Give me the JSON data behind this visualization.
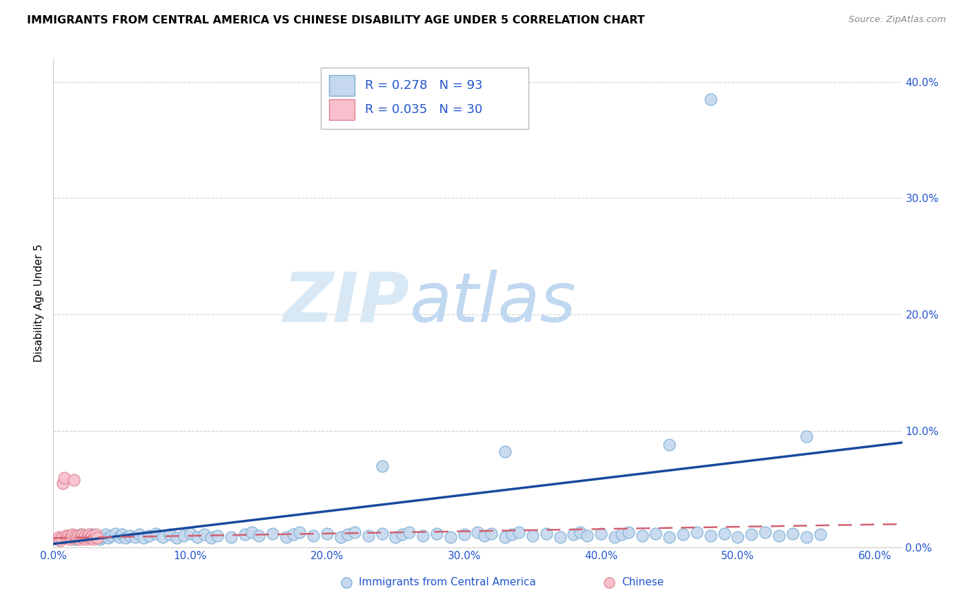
{
  "title": "IMMIGRANTS FROM CENTRAL AMERICA VS CHINESE DISABILITY AGE UNDER 5 CORRELATION CHART",
  "source": "Source: ZipAtlas.com",
  "ylabel": "Disability Age Under 5",
  "legend_label_1": "Immigrants from Central America",
  "legend_label_2": "Chinese",
  "R1": 0.278,
  "N1": 93,
  "R2": 0.035,
  "N2": 30,
  "color_blue_fill": "#c5d8ee",
  "color_blue_edge": "#7aadd4",
  "color_blue_line": "#1a4a9e",
  "color_pink_fill": "#f8c0cc",
  "color_pink_edge": "#e08090",
  "color_pink_line": "#d06070",
  "color_text": "#2255cc",
  "color_grid": "#cccccc",
  "background_color": "#ffffff",
  "watermark_zip": "ZIP",
  "watermark_atlas": "atlas",
  "watermark_color_zip": "#d8e8f4",
  "watermark_color_atlas": "#c0d8f0",
  "xlim": [
    0.0,
    0.62
  ],
  "ylim": [
    0.0,
    0.42
  ],
  "xticks": [
    0.0,
    0.1,
    0.2,
    0.3,
    0.4,
    0.5,
    0.6
  ],
  "xtick_labels": [
    "0.0%",
    "10.0%",
    "20.0%",
    "30.0%",
    "40.0%",
    "50.0%",
    "60.0%"
  ],
  "yticks": [
    0.0,
    0.1,
    0.2,
    0.3,
    0.4
  ],
  "ytick_labels": [
    "0.0%",
    "10.0%",
    "20.0%",
    "30.0%",
    "40.0%"
  ],
  "blue_x": [
    0.008,
    0.012,
    0.016,
    0.018,
    0.02,
    0.022,
    0.024,
    0.026,
    0.028,
    0.03,
    0.032,
    0.034,
    0.036,
    0.038,
    0.04,
    0.042,
    0.045,
    0.048,
    0.05,
    0.053,
    0.056,
    0.06,
    0.063,
    0.066,
    0.07,
    0.075,
    0.08,
    0.085,
    0.09,
    0.095,
    0.1,
    0.105,
    0.11,
    0.115,
    0.12,
    0.13,
    0.14,
    0.145,
    0.15,
    0.16,
    0.17,
    0.175,
    0.18,
    0.19,
    0.2,
    0.21,
    0.215,
    0.22,
    0.23,
    0.24,
    0.25,
    0.255,
    0.26,
    0.27,
    0.28,
    0.29,
    0.3,
    0.31,
    0.315,
    0.32,
    0.33,
    0.335,
    0.34,
    0.35,
    0.36,
    0.37,
    0.38,
    0.385,
    0.39,
    0.4,
    0.41,
    0.415,
    0.42,
    0.43,
    0.44,
    0.45,
    0.46,
    0.47,
    0.48,
    0.49,
    0.5,
    0.51,
    0.52,
    0.53,
    0.54,
    0.55,
    0.56,
    0.24,
    0.33,
    0.45,
    0.48,
    0.55,
    0.25
  ],
  "blue_y": [
    0.008,
    0.01,
    0.007,
    0.009,
    0.011,
    0.008,
    0.01,
    0.009,
    0.011,
    0.008,
    0.01,
    0.007,
    0.009,
    0.011,
    0.008,
    0.01,
    0.012,
    0.009,
    0.011,
    0.008,
    0.01,
    0.009,
    0.011,
    0.008,
    0.01,
    0.012,
    0.009,
    0.011,
    0.008,
    0.01,
    0.012,
    0.009,
    0.011,
    0.008,
    0.01,
    0.009,
    0.011,
    0.013,
    0.01,
    0.012,
    0.009,
    0.011,
    0.013,
    0.01,
    0.012,
    0.009,
    0.011,
    0.013,
    0.01,
    0.012,
    0.009,
    0.011,
    0.013,
    0.01,
    0.012,
    0.009,
    0.011,
    0.013,
    0.01,
    0.012,
    0.009,
    0.011,
    0.013,
    0.01,
    0.012,
    0.009,
    0.011,
    0.013,
    0.01,
    0.012,
    0.009,
    0.011,
    0.013,
    0.01,
    0.012,
    0.009,
    0.011,
    0.013,
    0.01,
    0.012,
    0.009,
    0.011,
    0.013,
    0.01,
    0.012,
    0.009,
    0.011,
    0.07,
    0.082,
    0.088,
    0.385,
    0.095,
    0.37
  ],
  "pink_x": [
    0.003,
    0.004,
    0.005,
    0.006,
    0.007,
    0.008,
    0.009,
    0.01,
    0.011,
    0.012,
    0.013,
    0.014,
    0.015,
    0.016,
    0.017,
    0.018,
    0.019,
    0.02,
    0.021,
    0.022,
    0.023,
    0.024,
    0.025,
    0.026,
    0.027,
    0.028,
    0.029,
    0.03,
    0.031,
    0.032
  ],
  "pink_y": [
    0.007,
    0.009,
    0.006,
    0.008,
    0.055,
    0.06,
    0.01,
    0.008,
    0.01,
    0.007,
    0.009,
    0.011,
    0.058,
    0.01,
    0.008,
    0.01,
    0.007,
    0.009,
    0.011,
    0.008,
    0.01,
    0.007,
    0.009,
    0.011,
    0.008,
    0.01,
    0.007,
    0.009,
    0.011,
    0.008
  ],
  "title_fontsize": 11.5,
  "tick_fontsize": 11,
  "label_fontsize": 11,
  "legend_fontsize": 13
}
